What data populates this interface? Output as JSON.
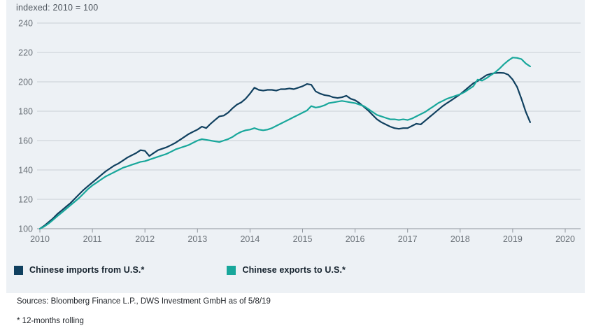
{
  "chart_data": {
    "type": "line",
    "title": "indexed: 2010 = 100",
    "xlabel": "",
    "ylabel": "",
    "xlim": [
      2010,
      2020
    ],
    "ylim": [
      100,
      240
    ],
    "x_ticks": [
      2010,
      2011,
      2012,
      2013,
      2014,
      2015,
      2016,
      2017,
      2018,
      2019,
      2020
    ],
    "y_ticks": [
      100,
      120,
      140,
      160,
      180,
      200,
      220,
      240
    ],
    "grid": "horizontal",
    "legend_position": "bottom-left",
    "x_start_year": 2010,
    "x_interval": "monthly",
    "last_point": "May 2019",
    "series": [
      {
        "id": "imports",
        "name": "Chinese imports from U.S.*",
        "color": "#10405F",
        "values": [
          100,
          102,
          104.5,
          107,
          110,
          112.5,
          115,
          117.5,
          120.5,
          123.5,
          126.5,
          129,
          131.5,
          134,
          136.5,
          139,
          141,
          143,
          144.5,
          146.5,
          148.5,
          150,
          151.5,
          153.5,
          153,
          149.5,
          151.5,
          153.5,
          154.5,
          155.5,
          157,
          158.5,
          160.5,
          162.5,
          164.5,
          166,
          167.5,
          169.5,
          168.5,
          171.5,
          174,
          176.5,
          177,
          179,
          182,
          184.5,
          186,
          188.5,
          192,
          196,
          194.5,
          194,
          194.5,
          194.5,
          194,
          195,
          195,
          195.5,
          195,
          196,
          197,
          198.5,
          198,
          193.5,
          192,
          191,
          190.5,
          189.5,
          189,
          189.5,
          190.5,
          188.5,
          187.5,
          185.5,
          183,
          180.5,
          177.5,
          174.5,
          172.5,
          171,
          169.5,
          168.5,
          168,
          168.5,
          168.5,
          170,
          171.5,
          171,
          173.5,
          176,
          178.5,
          181,
          183.5,
          185.5,
          187.5,
          189.5,
          191.5,
          194,
          196.5,
          199,
          200.5,
          202.5,
          204.5,
          205.5,
          206,
          206.2,
          206,
          204.8,
          201.5,
          196.5,
          188.5,
          179.5,
          172.5
        ]
      },
      {
        "id": "exports",
        "name": "Chinese exports to U.S.*",
        "color": "#18A79B",
        "values": [
          100,
          101.5,
          103.5,
          106,
          108.5,
          111,
          113.5,
          116,
          118.5,
          121,
          124,
          127,
          129.5,
          131.5,
          133.5,
          135.5,
          137,
          138.5,
          140,
          141.5,
          142.5,
          143.5,
          144.5,
          145.5,
          146,
          147,
          148,
          149,
          150,
          151,
          152.5,
          154,
          155,
          156,
          157,
          158.5,
          160,
          161,
          160.5,
          160,
          159.5,
          159,
          160,
          161,
          162.5,
          164.5,
          166,
          167,
          167.5,
          168.5,
          167.5,
          167,
          167.5,
          168.5,
          170,
          171.5,
          173,
          174.5,
          176,
          177.5,
          179,
          180.5,
          183.5,
          182.5,
          183,
          184,
          185.5,
          186,
          186.5,
          187,
          186.5,
          186,
          185.5,
          184.5,
          183.5,
          181.5,
          179.5,
          177.5,
          176.5,
          175.5,
          174.5,
          174.5,
          174,
          174.5,
          174,
          175,
          176.5,
          178,
          179.5,
          181.5,
          183.5,
          185.5,
          187,
          188.5,
          189.5,
          190.5,
          191.5,
          193,
          195,
          197,
          201.5,
          200.8,
          202.5,
          204.5,
          206.5,
          209,
          212,
          214.5,
          216.5,
          216.3,
          215.5,
          212.5,
          210.5
        ]
      }
    ]
  },
  "styles": {
    "panel_bg": "#edf1f5",
    "gridline_color": "#c9ced5",
    "axis_color": "#8f959d",
    "tick_label_color": "#6a7178",
    "note_color": "#4f565e"
  },
  "footer": {
    "sources": "Sources: Bloomberg Finance L.P., DWS Investment GmbH as of 5/8/19",
    "footnote": "* 12-months rolling"
  }
}
